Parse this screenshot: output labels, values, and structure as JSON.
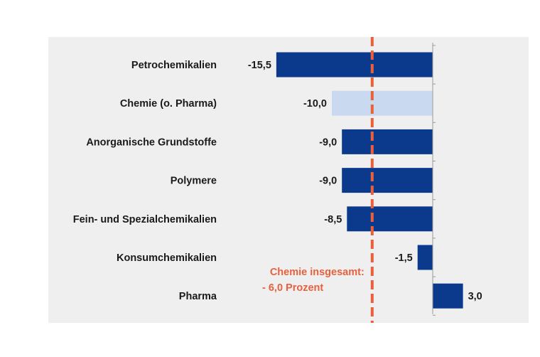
{
  "chart_data": {
    "type": "bar",
    "orientation": "horizontal",
    "categories": [
      "Petrochemikalien",
      "Chemie (o. Pharma)",
      "Anorganische Grundstoffe",
      "Polymere",
      "Fein- und Spezialchemikalien",
      "Konsumchemikalien",
      "Pharma"
    ],
    "values": [
      -15.5,
      -10.0,
      -9.0,
      -9.0,
      -8.5,
      -1.5,
      3.0
    ],
    "value_labels": [
      "-15,5",
      "-10,0",
      "-9,0",
      "-9,0",
      "-8,5",
      "-1,5",
      "3,0"
    ],
    "highlighted_category": "Chemie (o. Pharma)",
    "reference_line": {
      "value": -6.0,
      "label_line1": "Chemie insgesamt:",
      "label_line2": "- 6,0 Prozent"
    },
    "xlim": [
      -16.5,
      3.3
    ],
    "grid": false,
    "colors": {
      "bar": "#0b3a8c",
      "bar_highlight": "#c9daf0",
      "reference": "#e8603c",
      "background": "#efefef",
      "axis": "#9a9a9a"
    }
  }
}
